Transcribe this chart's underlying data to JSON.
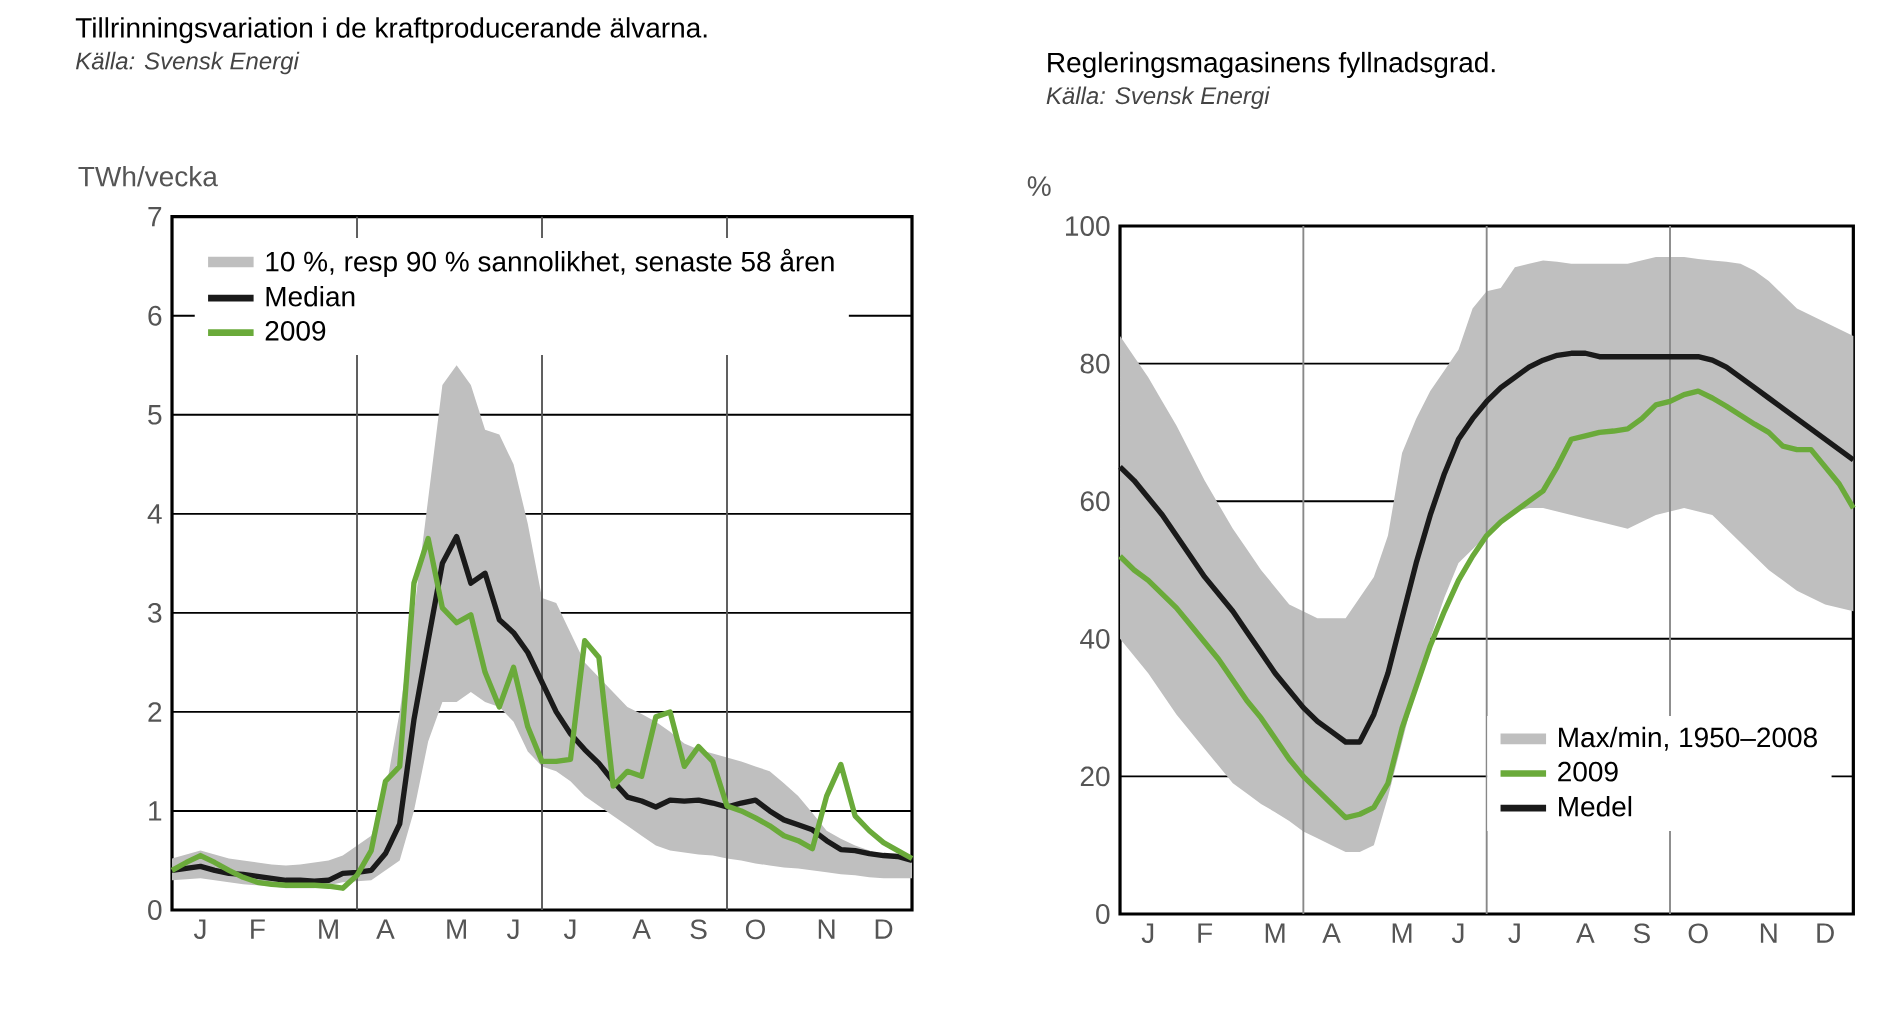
{
  "chart_data": [
    {
      "type": "line",
      "title": "Tillrinningsvariation i de kraftproducerande älvarna.",
      "annotations": [
        "Källa: Svensk Energi",
        "10 %, resp 90 % sannolikhet, senaste 58 åren"
      ],
      "ylabel": "TWh/vecka",
      "categories": [
        null,
        null,
        "J",
        null,
        null,
        null,
        "F",
        null,
        null,
        null,
        null,
        "M",
        null,
        null,
        null,
        "A",
        null,
        null,
        null,
        null,
        "M",
        null,
        null,
        null,
        "J",
        null,
        null,
        null,
        "J",
        null,
        null,
        null,
        null,
        "A",
        null,
        null,
        null,
        "S",
        null,
        null,
        null,
        "O",
        null,
        null,
        null,
        null,
        "N",
        null,
        null,
        null,
        "D",
        null,
        null
      ],
      "ylim": [
        0,
        7
      ],
      "yticks": [
        0,
        1,
        2,
        3,
        4,
        5,
        6,
        7
      ],
      "grid": "y",
      "legend": "top left",
      "series": [
        {
          "name": "Median",
          "color": "#1a1a1a",
          "values": [
            0.4,
            0.42,
            0.44,
            0.4,
            0.37,
            0.36,
            0.34,
            0.32,
            0.3,
            0.3,
            0.29,
            0.3,
            0.37,
            0.38,
            0.4,
            0.57,
            0.87,
            1.92,
            2.72,
            3.5,
            3.77,
            3.3,
            3.4,
            2.93,
            2.8,
            2.6,
            2.3,
            2.0,
            1.78,
            1.62,
            1.48,
            1.3,
            1.14,
            1.1,
            1.04,
            1.11,
            1.1,
            1.11,
            1.08,
            1.04,
            1.08,
            1.11,
            1.0,
            0.91,
            0.86,
            0.81,
            0.7,
            0.61,
            0.6,
            0.57,
            0.55,
            0.54,
            0.5
          ],
          "lower": [
            0.3,
            0.31,
            0.32,
            0.3,
            0.28,
            0.26,
            0.25,
            0.24,
            0.22,
            0.22,
            0.22,
            0.25,
            0.28,
            0.29,
            0.3,
            0.4,
            0.5,
            1.0,
            1.7,
            2.1,
            2.1,
            2.2,
            2.1,
            2.05,
            1.9,
            1.6,
            1.45,
            1.4,
            1.3,
            1.15,
            1.05,
            0.95,
            0.85,
            0.75,
            0.65,
            0.6,
            0.58,
            0.56,
            0.55,
            0.52,
            0.5,
            0.47,
            0.45,
            0.43,
            0.42,
            0.4,
            0.38,
            0.36,
            0.35,
            0.33,
            0.32,
            0.32,
            0.32
          ],
          "upper": [
            0.52,
            0.56,
            0.6,
            0.56,
            0.52,
            0.5,
            0.48,
            0.46,
            0.45,
            0.46,
            0.48,
            0.5,
            0.55,
            0.65,
            0.75,
            1.2,
            2.0,
            3.0,
            4.15,
            5.3,
            5.5,
            5.3,
            4.85,
            4.8,
            4.5,
            3.9,
            3.15,
            3.1,
            2.8,
            2.5,
            2.35,
            2.2,
            2.05,
            1.98,
            1.9,
            1.8,
            1.68,
            1.62,
            1.58,
            1.54,
            1.5,
            1.45,
            1.4,
            1.28,
            1.15,
            0.98,
            0.8,
            0.72,
            0.65,
            0.6,
            0.55,
            0.52,
            0.48
          ]
        },
        {
          "name": "2009",
          "color": "#6aaa3a",
          "values": [
            0.4,
            0.48,
            0.55,
            0.48,
            0.4,
            0.33,
            0.28,
            0.26,
            0.25,
            0.25,
            0.25,
            0.24,
            0.22,
            0.35,
            0.6,
            1.3,
            1.45,
            3.3,
            3.75,
            3.05,
            2.9,
            2.98,
            2.4,
            2.05,
            2.45,
            1.85,
            1.5,
            1.5,
            1.52,
            2.72,
            2.55,
            1.25,
            1.4,
            1.35,
            1.95,
            2.0,
            1.45,
            1.65,
            1.5,
            1.05,
            1.0,
            0.93,
            0.85,
            0.75,
            0.7,
            0.62,
            1.15,
            1.47,
            0.95,
            0.8,
            0.68,
            0.6,
            0.52
          ]
        }
      ]
    },
    {
      "type": "line",
      "title": "Regleringsmagasinens fyllnadsgrad.",
      "annotations": [
        "Källa: Svensk Energi",
        "Max/min, 1950–2008"
      ],
      "ylabel": "%",
      "categories": [
        null,
        null,
        "J",
        null,
        null,
        null,
        "F",
        null,
        null,
        null,
        null,
        "M",
        null,
        null,
        null,
        "A",
        null,
        null,
        null,
        null,
        "M",
        null,
        null,
        null,
        "J",
        null,
        null,
        null,
        "J",
        null,
        null,
        null,
        null,
        "A",
        null,
        null,
        null,
        "S",
        null,
        null,
        null,
        "O",
        null,
        null,
        null,
        null,
        "N",
        null,
        null,
        null,
        "D",
        null,
        null
      ],
      "ylim": [
        0,
        100
      ],
      "yticks": [
        0,
        20,
        40,
        60,
        80,
        100
      ],
      "grid": "y",
      "legend": "bottom",
      "series": [
        {
          "name": "2009",
          "color": "#6aaa3a",
          "values": [
            52,
            50,
            48.5,
            46.5,
            44.5,
            42,
            39.5,
            37,
            34,
            31,
            28.5,
            25.5,
            22.5,
            20,
            18,
            16,
            14,
            14.5,
            15.5,
            19,
            27,
            33,
            39,
            44,
            48.5,
            52,
            55,
            57,
            58.5,
            60,
            61.5,
            65,
            69,
            69.5,
            70,
            70.2,
            70.5,
            72,
            74,
            74.5,
            75.5,
            76,
            75,
            73.8,
            72.5,
            71.2,
            70,
            68,
            67.5,
            67.5,
            65,
            62.5,
            59
          ]
        },
        {
          "name": "Medel",
          "color": "#1a1a1a",
          "values": [
            65,
            63,
            60.5,
            58,
            55,
            52,
            49,
            46.5,
            44,
            41,
            38,
            35,
            32.5,
            30,
            28,
            26.5,
            25,
            25,
            29,
            35,
            43,
            51,
            58,
            64,
            69,
            72,
            74.5,
            76.5,
            78,
            79.5,
            80.5,
            81.2,
            81.5,
            81.5,
            81,
            81,
            81,
            81,
            81,
            81,
            81,
            81,
            80.5,
            79.5,
            78,
            76.5,
            75,
            73.5,
            72,
            70.5,
            69,
            67.5,
            66
          ],
          "lower": [
            40,
            37.5,
            35,
            32,
            29,
            26.5,
            24,
            21.5,
            19,
            17.5,
            16,
            14.8,
            13.5,
            12,
            11,
            10,
            9,
            9,
            10,
            17,
            25,
            33,
            40,
            46,
            51,
            53,
            55,
            57,
            58.5,
            59,
            59,
            58.5,
            58,
            57.5,
            57,
            56.5,
            56,
            57,
            58,
            58.5,
            59,
            58.5,
            58,
            56,
            54,
            52,
            50,
            48.5,
            47,
            46,
            45,
            44.5,
            44
          ],
          "upper": [
            84,
            81,
            78,
            74.5,
            71,
            67,
            63,
            59.5,
            56,
            53,
            50,
            47.5,
            45,
            44,
            43,
            43,
            43,
            46,
            49,
            55,
            67,
            72,
            76,
            79,
            82,
            88,
            90.5,
            91,
            94,
            94.5,
            95,
            94.8,
            94.5,
            94.5,
            94.5,
            94.5,
            94.5,
            95,
            95.5,
            95.5,
            95.5,
            95.2,
            95,
            94.8,
            94.5,
            93.5,
            92,
            90,
            88,
            87,
            86,
            85,
            84
          ]
        }
      ]
    }
  ]
}
